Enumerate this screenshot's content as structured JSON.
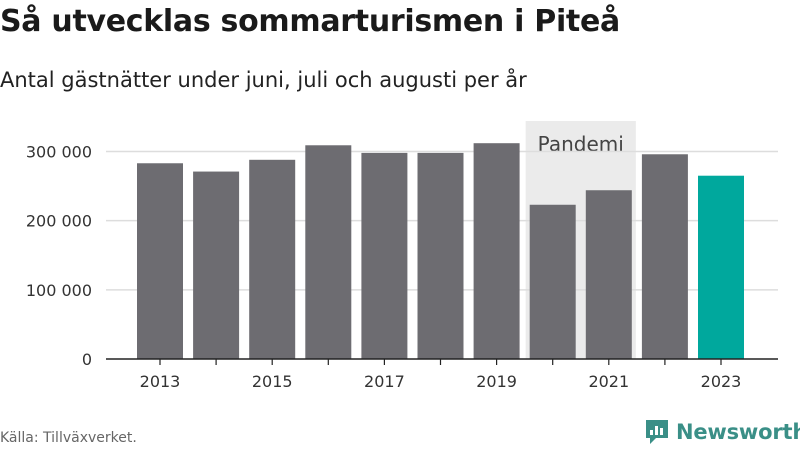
{
  "header": {
    "title": "Så utvecklas sommarturismen i Piteå",
    "subtitle": "Antal gästnätter under juni, juli och augusti per år"
  },
  "footer": {
    "source": "Källa: Tillväxverket.",
    "brand": "Newsworthy",
    "brand_icon": "newsworthy-logo-icon"
  },
  "colors": {
    "bar": "#6d6c71",
    "highlight": "#00a89d",
    "band": "#ebebeb",
    "grid": "#dddddd",
    "brand": "#3a8f87"
  },
  "chart_data": {
    "type": "bar",
    "title": "Så utvecklas sommarturismen i Piteå",
    "subtitle": "Antal gästnätter under juni, juli och augusti per år",
    "categories": [
      "2013",
      "2014",
      "2015",
      "2016",
      "2017",
      "2018",
      "2019",
      "2020",
      "2021",
      "2022",
      "2023"
    ],
    "values": [
      283000,
      271000,
      288000,
      309000,
      298000,
      298000,
      312000,
      223000,
      244000,
      296000,
      265000
    ],
    "highlight_category": "2023",
    "x_tick_labels": [
      "2013",
      "2015",
      "2017",
      "2019",
      "2021",
      "2023"
    ],
    "y_ticks": [
      0,
      100000,
      200000,
      300000
    ],
    "y_tick_labels": [
      "0",
      "100 000",
      "200 000",
      "300 000"
    ],
    "ylim": [
      0,
      360000
    ],
    "grid": true,
    "xlabel": "",
    "ylabel": "",
    "annotations": [
      {
        "label": "Pandemi",
        "from": "2020",
        "to": "2021"
      }
    ]
  }
}
